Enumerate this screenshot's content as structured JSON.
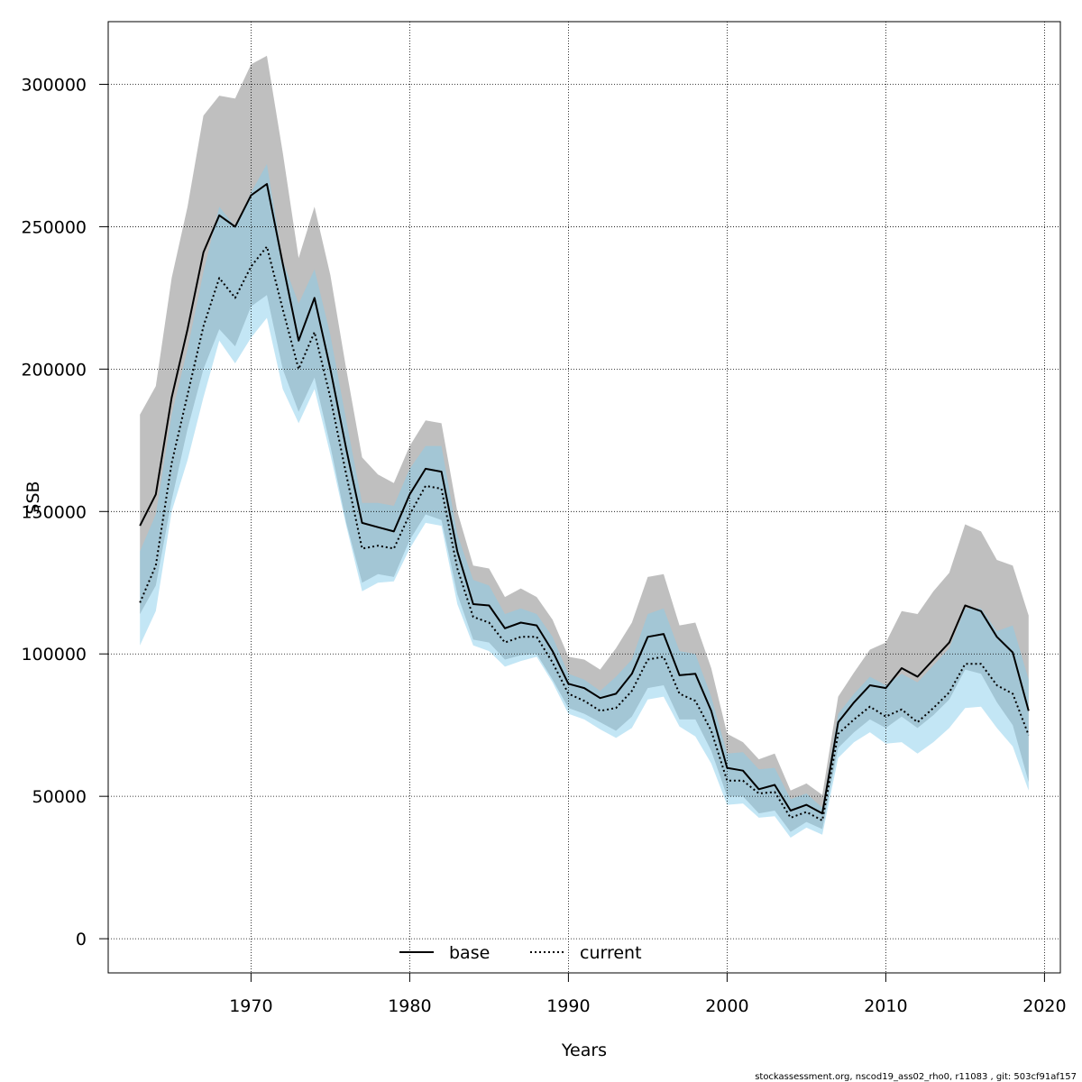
{
  "chart_data": {
    "type": "line",
    "xlabel": "Years",
    "ylabel": "SSB",
    "xlim": [
      1961,
      2021
    ],
    "ylim": [
      -12000,
      322000
    ],
    "x_ticks": [
      1970,
      1980,
      1990,
      2000,
      2010,
      2020
    ],
    "y_ticks": [
      0,
      50000,
      100000,
      150000,
      200000,
      250000,
      300000
    ],
    "grid": true,
    "legend_position": "bottom-center",
    "x": [
      1963,
      1964,
      1965,
      1966,
      1967,
      1968,
      1969,
      1970,
      1971,
      1972,
      1973,
      1974,
      1975,
      1976,
      1977,
      1978,
      1979,
      1980,
      1981,
      1982,
      1983,
      1984,
      1985,
      1986,
      1987,
      1988,
      1989,
      1990,
      1991,
      1992,
      1993,
      1994,
      1995,
      1996,
      1997,
      1998,
      1999,
      2000,
      2001,
      2002,
      2003,
      2004,
      2005,
      2006,
      2007,
      2008,
      2009,
      2010,
      2011,
      2012,
      2013,
      2014,
      2015,
      2016,
      2017,
      2018,
      2019
    ],
    "series": [
      {
        "name": "base",
        "line_color": "#000000",
        "band_color": "#808080",
        "values": [
          145000,
          156000,
          190000,
          214000,
          241000,
          254000,
          250000,
          261000,
          265000,
          237000,
          210000,
          225000,
          200000,
          172000,
          146000,
          144500,
          143000,
          156000,
          165000,
          164000,
          136000,
          117500,
          117000,
          109000,
          111000,
          110000,
          101000,
          89500,
          88000,
          84500,
          86000,
          93000,
          106000,
          107000,
          92500,
          93000,
          80000,
          60000,
          59000,
          52500,
          54000,
          45000,
          47000,
          44000,
          76000,
          83000,
          89000,
          88000,
          95000,
          92000,
          98000,
          104000,
          117000,
          115000,
          106000,
          100500,
          80000
        ],
        "upper": [
          184000,
          194000,
          232000,
          257000,
          289000,
          296000,
          295000,
          307000,
          310000,
          276000,
          239000,
          257000,
          233000,
          200000,
          169000,
          163000,
          160000,
          173000,
          182000,
          181000,
          150000,
          131000,
          130000,
          120000,
          123000,
          120000,
          112000,
          99000,
          98000,
          94500,
          102000,
          111000,
          127000,
          128000,
          110000,
          111000,
          95000,
          72000,
          69000,
          63000,
          65000,
          52000,
          54500,
          50500,
          85000,
          93500,
          101500,
          104000,
          115000,
          114000,
          122000,
          128500,
          145500,
          143000,
          133000,
          131000,
          113500
        ],
        "lower": [
          114000,
          124000,
          154000,
          179000,
          200000,
          214000,
          208000,
          222000,
          226000,
          200000,
          185000,
          197000,
          173000,
          146000,
          125000,
          128000,
          127000,
          140000,
          149000,
          147000,
          121000,
          105000,
          104000,
          98000,
          99500,
          100000,
          91000,
          81000,
          79000,
          76000,
          73000,
          78000,
          88000,
          89000,
          77000,
          77000,
          66000,
          50000,
          50000,
          44000,
          45000,
          37500,
          41000,
          38500,
          67000,
          72500,
          77000,
          74000,
          78000,
          74000,
          78500,
          84000,
          94500,
          93000,
          83000,
          75000,
          55000
        ]
      },
      {
        "name": "current",
        "line_color": "#000000",
        "band_color": "#87ceeb",
        "values": [
          118000,
          131000,
          167000,
          191000,
          215000,
          232000,
          225000,
          236000,
          243000,
          221000,
          200000,
          213000,
          190000,
          163000,
          137000,
          138000,
          137000,
          149000,
          159000,
          158000,
          130000,
          113000,
          111000,
          104000,
          106000,
          106000,
          97000,
          86000,
          83500,
          80000,
          81000,
          87000,
          98000,
          99000,
          86000,
          83500,
          73000,
          55500,
          55500,
          51000,
          51500,
          42500,
          44500,
          41500,
          72000,
          77000,
          81500,
          78000,
          80500,
          76000,
          81000,
          86500,
          96500,
          96500,
          89000,
          86000,
          71500
        ],
        "upper": [
          136000,
          149000,
          184000,
          207000,
          234000,
          257000,
          250000,
          262000,
          272000,
          238000,
          223000,
          235000,
          212000,
          182000,
          153000,
          153000,
          152000,
          165000,
          173000,
          173000,
          142000,
          126000,
          124000,
          114000,
          116000,
          114000,
          106000,
          93000,
          91000,
          87000,
          92000,
          98000,
          114000,
          116000,
          101000,
          100000,
          85000,
          65000,
          65500,
          59500,
          60000,
          49000,
          51000,
          46000,
          79000,
          86000,
          92000,
          89000,
          93000,
          90000,
          96000,
          102000,
          116000,
          116000,
          108000,
          110000,
          91000
        ],
        "lower": [
          103000,
          115000,
          150000,
          168000,
          190000,
          210000,
          202000,
          211000,
          218000,
          193000,
          181000,
          193000,
          170000,
          145000,
          122000,
          125000,
          125500,
          137000,
          146000,
          145000,
          117500,
          103000,
          101000,
          95500,
          97500,
          99000,
          90000,
          79000,
          77000,
          73500,
          70500,
          74000,
          84000,
          85000,
          74500,
          71000,
          61500,
          47000,
          47500,
          42500,
          43000,
          35500,
          39000,
          36500,
          63500,
          69000,
          72500,
          68500,
          69000,
          65000,
          69000,
          74000,
          81000,
          81500,
          74000,
          67500,
          52000
        ]
      }
    ]
  },
  "footer": "stockassessment.org, nscod19_ass02_rho0, r11083 , git: 503cf91af157"
}
